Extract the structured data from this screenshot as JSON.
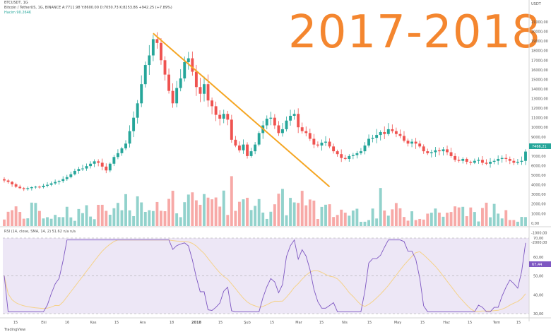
{
  "header": {
    "line0": "BTCUSDT, 1G",
    "line1": "Bitcoin / TetherUS, 1G, BINANCE  A:7711.98  Y:8600.00  D:7050.73  K:8253.86  +942.25 (+7.89%)",
    "line2": "Hacim  90.264K"
  },
  "big_label": "2017-2018",
  "price_axis": {
    "unit": "USDT",
    "ticks": [
      "21000,00",
      "20000,00",
      "19000,00",
      "18000,00",
      "17000,00",
      "16000,00",
      "15000,00",
      "14000,00",
      "13000,00",
      "12000,00",
      "11000,00",
      "10000,00",
      "9000,00",
      "8000,00",
      "7000,00",
      "6000,00",
      "5000,00",
      "4000,00",
      "3000,00",
      "2000,00",
      "1000,00",
      "0,00",
      "-1000,00",
      "-2000,00"
    ],
    "last_price": "7466,21"
  },
  "rsi": {
    "label": "RSI (14, close, SMA, 14, 2)  51.62  n/a  n/a",
    "ticks": [
      "70,00",
      "60,00",
      "50,00",
      "40,00",
      "30,00"
    ],
    "last": "67,44"
  },
  "time_axis": {
    "ticks": [
      "15",
      "Eki",
      "16",
      "Kas",
      "15",
      "Ara",
      "18",
      "2018",
      "15",
      "Şub",
      "15",
      "Mar",
      "15",
      "Nis",
      "15",
      "May",
      "15",
      "Haz",
      "15",
      "Tem",
      "15"
    ]
  },
  "footer": "TradingView",
  "colors": {
    "up": "#26a69a",
    "down": "#ef5350",
    "trendline": "#f5a623",
    "big_label": "#f4862f",
    "rsi_line": "#7e57c2",
    "rsi_band": "#ede7f6",
    "rsi_ma": "#f5d28a",
    "last_price": "#26a69a",
    "last_rsi": "#7e57c2"
  },
  "chart_data": {
    "type": "candlestick",
    "series_close": [
      4450,
      4300,
      4050,
      3800,
      3650,
      3550,
      3650,
      3750,
      3800,
      3750,
      3900,
      4000,
      4150,
      4300,
      4400,
      4600,
      4800,
      5100,
      5450,
      5650,
      5700,
      5950,
      6200,
      6450,
      6300,
      5900,
      5500,
      6200,
      6900,
      7300,
      7800,
      8300,
      9600,
      11000,
      12500,
      14500,
      16500,
      17500,
      19200,
      18800,
      17000,
      15500,
      13800,
      12500,
      14100,
      15100,
      16800,
      17200,
      15800,
      14200,
      13500,
      14500,
      12800,
      12200,
      11300,
      10900,
      11400,
      10800,
      8700,
      8100,
      7600,
      8200,
      7000,
      7500,
      8200,
      9400,
      10200,
      10900,
      11000,
      10200,
      9400,
      9800,
      10700,
      11200,
      11400,
      10000,
      9600,
      9400,
      8800,
      8200,
      8100,
      8400,
      8500,
      8000,
      7500,
      7200,
      6800,
      6700,
      7000,
      7100,
      7300,
      7500,
      8100,
      8800,
      8900,
      9200,
      9500,
      9300,
      9800,
      9600,
      9300,
      9100,
      8600,
      8300,
      8500,
      8300,
      8000,
      7500,
      7300,
      7400,
      7600,
      7500,
      7700,
      7400,
      7000,
      6600,
      6500,
      6700,
      6400,
      6300,
      6500,
      6600,
      6300,
      6200,
      6400,
      6500,
      6700,
      6800,
      6700,
      6500,
      6300,
      6400,
      6500,
      7466
    ],
    "trendline": {
      "from": {
        "index": 38,
        "value": 19800
      },
      "to": {
        "index": 83,
        "value": 3800
      }
    },
    "ylim": [
      -2000,
      21000
    ],
    "rsi_ylim": [
      30,
      70
    ],
    "rsi_last": 67.44
  }
}
